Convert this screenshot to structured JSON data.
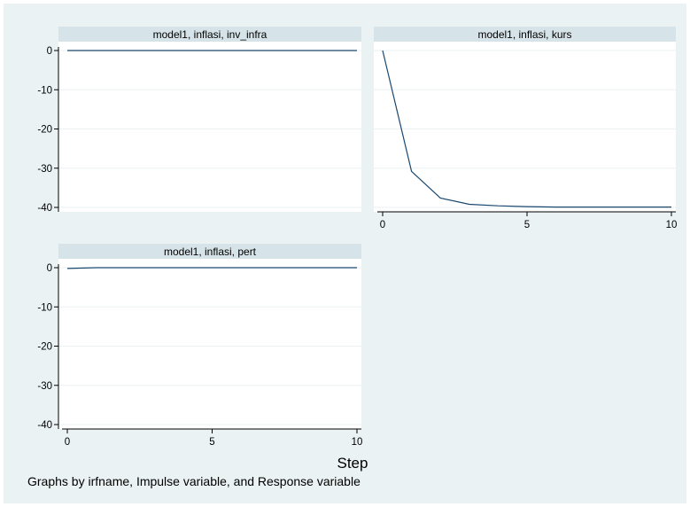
{
  "chart_data": {
    "type": "line",
    "xlabel": "Step",
    "note": "Graphs by irfname, Impulse variable, and Response variable",
    "line_color": "#1a476f",
    "title_bar_color": "#d6e3e8",
    "panels": [
      {
        "title": "model1, inflasi, inv_infra",
        "x": [
          0,
          1,
          2,
          3,
          4,
          5,
          6,
          7,
          8,
          9,
          10
        ],
        "y": [
          0,
          0,
          0,
          0,
          0,
          0,
          0,
          0,
          0,
          0,
          0
        ],
        "xlim": [
          0,
          10
        ],
        "ylim": [
          -40,
          0
        ],
        "yticks": [
          "0",
          "-10",
          "-20",
          "-30",
          "-40"
        ],
        "xticks": [],
        "grid": true
      },
      {
        "title": "model1, inflasi, kurs",
        "x": [
          0,
          1,
          2,
          3,
          4,
          5,
          6,
          7,
          8,
          9,
          10
        ],
        "y": [
          0,
          -30.8,
          -37.6,
          -39.2,
          -39.6,
          -39.8,
          -39.9,
          -39.9,
          -39.9,
          -39.9,
          -39.9
        ],
        "xlim": [
          0,
          10
        ],
        "ylim": [
          -40,
          0
        ],
        "yticks": [],
        "xticks": [
          "0",
          "5",
          "10"
        ],
        "grid": true
      },
      {
        "title": "model1, inflasi, pert",
        "x": [
          0,
          1,
          2,
          3,
          4,
          5,
          6,
          7,
          8,
          9,
          10
        ],
        "y": [
          -0.2,
          0,
          0,
          0,
          0,
          0,
          0,
          0,
          0,
          0,
          0
        ],
        "xlim": [
          0,
          10
        ],
        "ylim": [
          -40,
          0
        ],
        "yticks": [
          "0",
          "-10",
          "-20",
          "-30",
          "-40"
        ],
        "xticks": [
          "0",
          "5",
          "10"
        ],
        "grid": true
      }
    ]
  }
}
